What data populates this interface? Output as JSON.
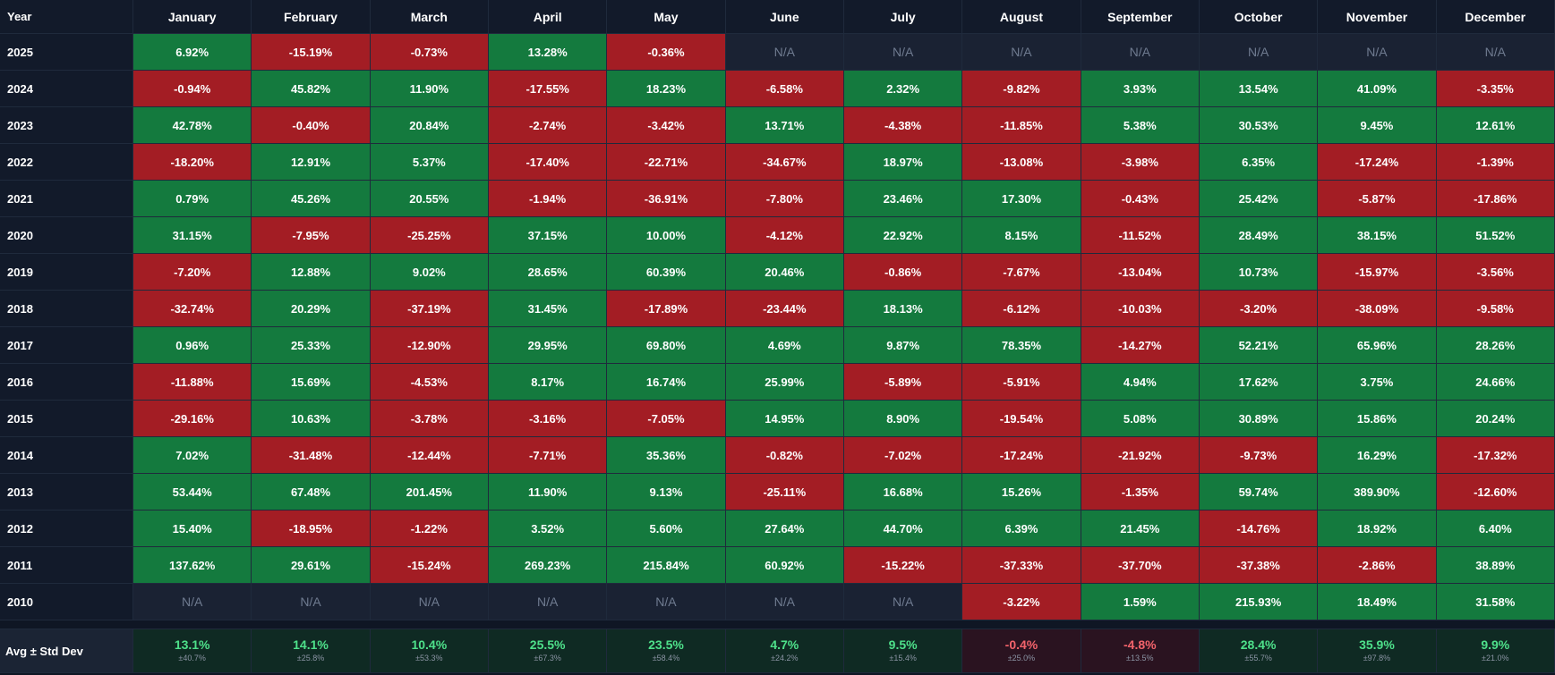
{
  "header": {
    "year_label": "Year",
    "months": [
      "January",
      "February",
      "March",
      "April",
      "May",
      "June",
      "July",
      "August",
      "September",
      "October",
      "November",
      "December"
    ]
  },
  "rows": [
    {
      "year": "2025",
      "values": [
        "6.92%",
        "-15.19%",
        "-0.73%",
        "13.28%",
        "-0.36%",
        "N/A",
        "N/A",
        "N/A",
        "N/A",
        "N/A",
        "N/A",
        "N/A"
      ]
    },
    {
      "year": "2024",
      "values": [
        "-0.94%",
        "45.82%",
        "11.90%",
        "-17.55%",
        "18.23%",
        "-6.58%",
        "2.32%",
        "-9.82%",
        "3.93%",
        "13.54%",
        "41.09%",
        "-3.35%"
      ]
    },
    {
      "year": "2023",
      "values": [
        "42.78%",
        "-0.40%",
        "20.84%",
        "-2.74%",
        "-3.42%",
        "13.71%",
        "-4.38%",
        "-11.85%",
        "5.38%",
        "30.53%",
        "9.45%",
        "12.61%"
      ]
    },
    {
      "year": "2022",
      "values": [
        "-18.20%",
        "12.91%",
        "5.37%",
        "-17.40%",
        "-22.71%",
        "-34.67%",
        "18.97%",
        "-13.08%",
        "-3.98%",
        "6.35%",
        "-17.24%",
        "-1.39%"
      ]
    },
    {
      "year": "2021",
      "values": [
        "0.79%",
        "45.26%",
        "20.55%",
        "-1.94%",
        "-36.91%",
        "-7.80%",
        "23.46%",
        "17.30%",
        "-0.43%",
        "25.42%",
        "-5.87%",
        "-17.86%"
      ]
    },
    {
      "year": "2020",
      "values": [
        "31.15%",
        "-7.95%",
        "-25.25%",
        "37.15%",
        "10.00%",
        "-4.12%",
        "22.92%",
        "8.15%",
        "-11.52%",
        "28.49%",
        "38.15%",
        "51.52%"
      ]
    },
    {
      "year": "2019",
      "values": [
        "-7.20%",
        "12.88%",
        "9.02%",
        "28.65%",
        "60.39%",
        "20.46%",
        "-0.86%",
        "-7.67%",
        "-13.04%",
        "10.73%",
        "-15.97%",
        "-3.56%"
      ]
    },
    {
      "year": "2018",
      "values": [
        "-32.74%",
        "20.29%",
        "-37.19%",
        "31.45%",
        "-17.89%",
        "-23.44%",
        "18.13%",
        "-6.12%",
        "-10.03%",
        "-3.20%",
        "-38.09%",
        "-9.58%"
      ]
    },
    {
      "year": "2017",
      "values": [
        "0.96%",
        "25.33%",
        "-12.90%",
        "29.95%",
        "69.80%",
        "4.69%",
        "9.87%",
        "78.35%",
        "-14.27%",
        "52.21%",
        "65.96%",
        "28.26%"
      ]
    },
    {
      "year": "2016",
      "values": [
        "-11.88%",
        "15.69%",
        "-4.53%",
        "8.17%",
        "16.74%",
        "25.99%",
        "-5.89%",
        "-5.91%",
        "4.94%",
        "17.62%",
        "3.75%",
        "24.66%"
      ]
    },
    {
      "year": "2015",
      "values": [
        "-29.16%",
        "10.63%",
        "-3.78%",
        "-3.16%",
        "-7.05%",
        "14.95%",
        "8.90%",
        "-19.54%",
        "5.08%",
        "30.89%",
        "15.86%",
        "20.24%"
      ]
    },
    {
      "year": "2014",
      "values": [
        "7.02%",
        "-31.48%",
        "-12.44%",
        "-7.71%",
        "35.36%",
        "-0.82%",
        "-7.02%",
        "-17.24%",
        "-21.92%",
        "-9.73%",
        "16.29%",
        "-17.32%"
      ]
    },
    {
      "year": "2013",
      "values": [
        "53.44%",
        "67.48%",
        "201.45%",
        "11.90%",
        "9.13%",
        "-25.11%",
        "16.68%",
        "15.26%",
        "-1.35%",
        "59.74%",
        "389.90%",
        "-12.60%"
      ]
    },
    {
      "year": "2012",
      "values": [
        "15.40%",
        "-18.95%",
        "-1.22%",
        "3.52%",
        "5.60%",
        "27.64%",
        "44.70%",
        "6.39%",
        "21.45%",
        "-14.76%",
        "18.92%",
        "6.40%"
      ]
    },
    {
      "year": "2011",
      "values": [
        "137.62%",
        "29.61%",
        "-15.24%",
        "269.23%",
        "215.84%",
        "60.92%",
        "-15.22%",
        "-37.33%",
        "-37.70%",
        "-37.38%",
        "-2.86%",
        "38.89%"
      ]
    },
    {
      "year": "2010",
      "values": [
        "N/A",
        "N/A",
        "N/A",
        "N/A",
        "N/A",
        "N/A",
        "N/A",
        "-3.22%",
        "1.59%",
        "215.93%",
        "18.49%",
        "31.58%"
      ]
    }
  ],
  "summary": {
    "label": "Avg ± Std Dev",
    "avgs": [
      "13.1%",
      "14.1%",
      "10.4%",
      "25.5%",
      "23.5%",
      "4.7%",
      "9.5%",
      "-0.4%",
      "-4.8%",
      "28.4%",
      "35.9%",
      "9.9%"
    ],
    "stds": [
      "±40.7%",
      "±25.8%",
      "±53.3%",
      "±67.3%",
      "±58.4%",
      "±24.2%",
      "±15.4%",
      "±25.0%",
      "±13.5%",
      "±55.7%",
      "±97.8%",
      "±21.0%"
    ]
  },
  "colors": {
    "positive": "#147a3e",
    "negative": "#a31d24",
    "na": "#1a2233"
  }
}
